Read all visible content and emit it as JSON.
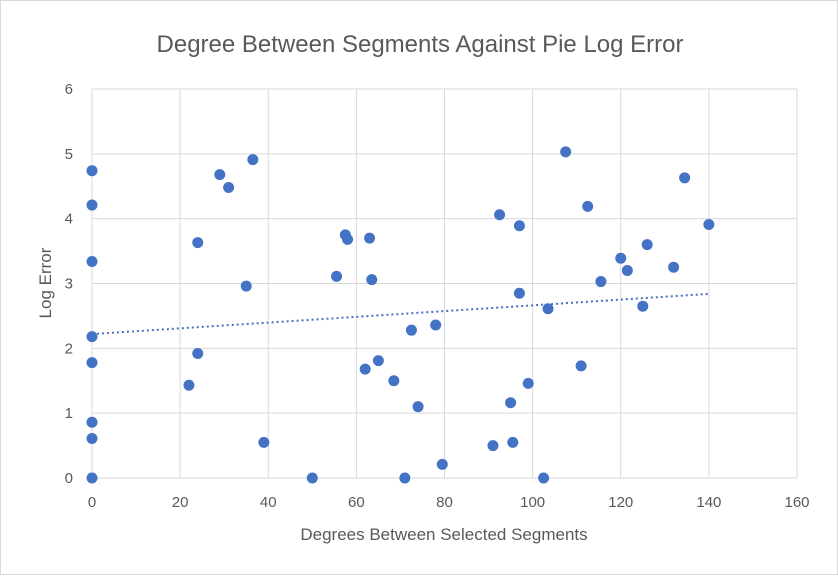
{
  "chart_data": {
    "type": "scatter",
    "title": "Degree Between Segments Against Pie Log Error",
    "xlabel": "Degrees Between Selected Segments",
    "ylabel": "Log Error",
    "xlim": [
      0,
      160
    ],
    "ylim": [
      0,
      6
    ],
    "x_ticks": [
      "0",
      "20",
      "40",
      "60",
      "80",
      "100",
      "120",
      "140",
      "160"
    ],
    "y_ticks": [
      "0",
      "1",
      "2",
      "3",
      "4",
      "5",
      "6"
    ],
    "grid": true,
    "legend": "none",
    "marker_color": "#4472c4",
    "trendline": {
      "type": "linear",
      "style": "dotted",
      "start": [
        0,
        2.22
      ],
      "end": [
        140,
        2.84
      ]
    },
    "points": [
      [
        0,
        4.74
      ],
      [
        0,
        4.21
      ],
      [
        0,
        3.34
      ],
      [
        0,
        2.18
      ],
      [
        0,
        1.78
      ],
      [
        0,
        0.86
      ],
      [
        0,
        0.61
      ],
      [
        0,
        0.0
      ],
      [
        22,
        1.43
      ],
      [
        24,
        3.63
      ],
      [
        24,
        1.92
      ],
      [
        29,
        4.68
      ],
      [
        31,
        4.48
      ],
      [
        35,
        2.96
      ],
      [
        36.5,
        4.91
      ],
      [
        39,
        0.55
      ],
      [
        50,
        0.0
      ],
      [
        55.5,
        3.11
      ],
      [
        57.5,
        3.75
      ],
      [
        58,
        3.68
      ],
      [
        62,
        1.68
      ],
      [
        63,
        3.7
      ],
      [
        63.5,
        3.06
      ],
      [
        65,
        1.81
      ],
      [
        68.5,
        1.5
      ],
      [
        71,
        0.0
      ],
      [
        72.5,
        2.28
      ],
      [
        74,
        1.1
      ],
      [
        78,
        2.36
      ],
      [
        79.5,
        0.21
      ],
      [
        91,
        0.5
      ],
      [
        92.5,
        4.06
      ],
      [
        95,
        1.16
      ],
      [
        95.5,
        0.55
      ],
      [
        97,
        3.89
      ],
      [
        97,
        2.85
      ],
      [
        99,
        1.46
      ],
      [
        102.5,
        0.0
      ],
      [
        103.5,
        2.61
      ],
      [
        107.5,
        5.03
      ],
      [
        111,
        1.73
      ],
      [
        112.5,
        4.19
      ],
      [
        115.5,
        3.03
      ],
      [
        120,
        3.39
      ],
      [
        121.5,
        3.2
      ],
      [
        125,
        2.65
      ],
      [
        126,
        3.6
      ],
      [
        132,
        3.25
      ],
      [
        134.5,
        4.63
      ],
      [
        140,
        3.91
      ]
    ]
  }
}
